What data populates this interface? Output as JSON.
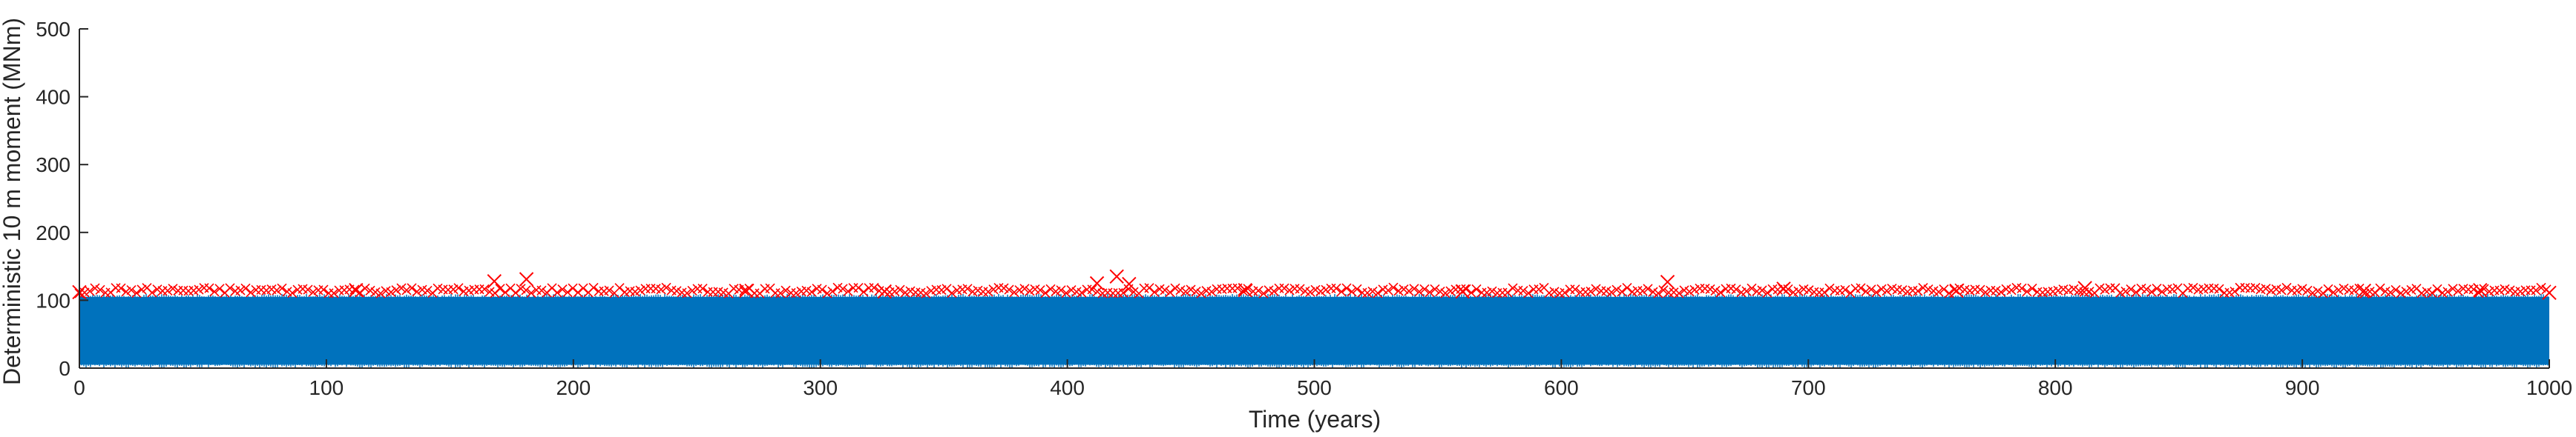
{
  "chart_data": {
    "type": "line",
    "title": "",
    "xlabel": "Time (years)",
    "ylabel": "Deterministic 10 m moment (MNm)",
    "xlim": [
      0,
      1000
    ],
    "ylim": [
      0,
      500
    ],
    "xticks": [
      0,
      100,
      200,
      300,
      400,
      500,
      600,
      700,
      800,
      900,
      1000
    ],
    "yticks": [
      0,
      100,
      200,
      300,
      400,
      500
    ],
    "grid": false,
    "legend": "none",
    "series": [
      {
        "kind": "time-series",
        "color": "#0072BD",
        "y_range_approx": [
          5,
          105
        ],
        "x_range": [
          0,
          1000
        ]
      },
      {
        "kind": "peak-markers",
        "marker": "x",
        "color": "#FF0000",
        "baseline_approx": 110,
        "points": [
          {
            "x": 0,
            "y": 112
          },
          {
            "x": 112,
            "y": 115
          },
          {
            "x": 168,
            "y": 128
          },
          {
            "x": 181,
            "y": 131
          },
          {
            "x": 270,
            "y": 114
          },
          {
            "x": 326,
            "y": 113
          },
          {
            "x": 412,
            "y": 125
          },
          {
            "x": 420,
            "y": 135
          },
          {
            "x": 425,
            "y": 124
          },
          {
            "x": 472,
            "y": 115
          },
          {
            "x": 560,
            "y": 113
          },
          {
            "x": 643,
            "y": 127
          },
          {
            "x": 690,
            "y": 117
          },
          {
            "x": 760,
            "y": 114
          },
          {
            "x": 812,
            "y": 118
          },
          {
            "x": 925,
            "y": 114
          },
          {
            "x": 972,
            "y": 115
          },
          {
            "x": 1000,
            "y": 111
          }
        ]
      }
    ]
  }
}
